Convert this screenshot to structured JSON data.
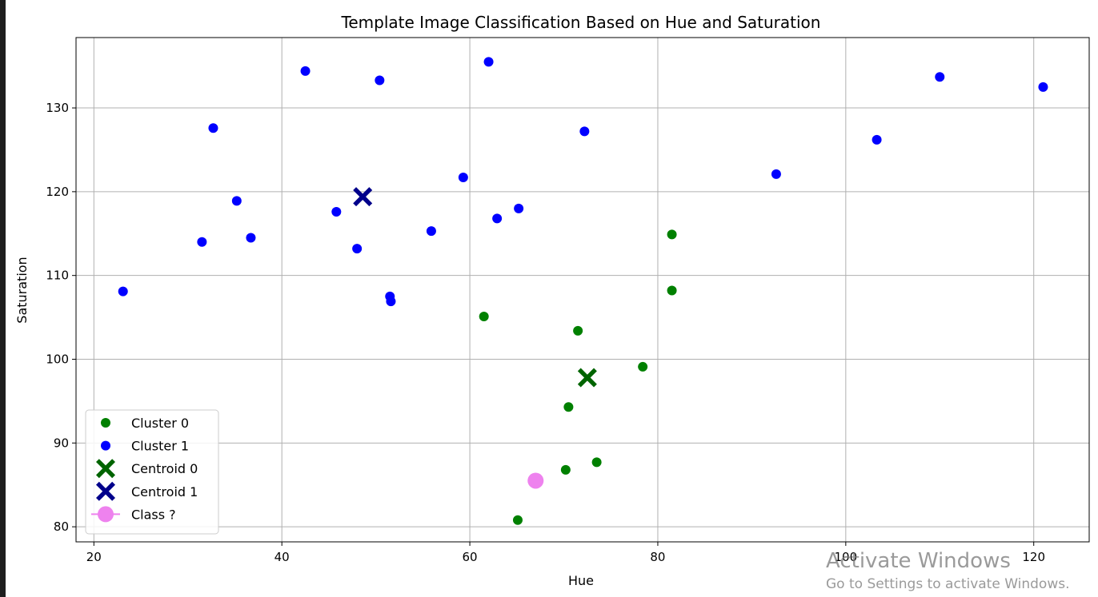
{
  "chart_data": {
    "type": "scatter",
    "title": "Template Image Classification Based on Hue and Saturation",
    "xlabel": "Hue",
    "ylabel": "Saturation",
    "xlim": [
      18.1,
      125.9
    ],
    "ylim": [
      78.2,
      138.4
    ],
    "xticks": [
      20,
      40,
      60,
      80,
      100,
      120
    ],
    "yticks": [
      80,
      90,
      100,
      110,
      120,
      130
    ],
    "grid": true,
    "legend_position": "lower-left",
    "series": [
      {
        "name": "Cluster 0",
        "color": "#008000",
        "marker": "circle",
        "x": [
          65.1,
          70.2,
          73.5,
          70.5,
          78.4,
          71.5,
          61.5,
          81.5,
          81.5
        ],
        "y": [
          80.8,
          86.8,
          87.7,
          94.3,
          99.1,
          103.4,
          105.1,
          108.2,
          114.9
        ]
      },
      {
        "name": "Cluster 1",
        "color": "#0000ff",
        "marker": "circle",
        "x": [
          23.1,
          31.5,
          36.7,
          35.2,
          32.7,
          42.5,
          45.8,
          48.0,
          50.4,
          51.5,
          51.6,
          55.9,
          59.3,
          62.0,
          62.9,
          65.2,
          72.2,
          92.6,
          103.3,
          110.0,
          121.0
        ],
        "y": [
          108.1,
          114.0,
          114.5,
          118.9,
          127.6,
          134.4,
          117.6,
          113.2,
          133.3,
          107.5,
          106.9,
          115.3,
          121.7,
          135.5,
          116.8,
          118.0,
          127.2,
          122.1,
          126.2,
          133.7,
          132.5
        ]
      },
      {
        "name": "Centroid 0",
        "color": "#006400",
        "marker": "x-filled",
        "x": [
          72.5
        ],
        "y": [
          97.8
        ]
      },
      {
        "name": "Centroid 1",
        "color": "#00008b",
        "marker": "x-filled",
        "x": [
          48.6
        ],
        "y": [
          119.4
        ]
      },
      {
        "name": "Class ?",
        "color": "#ee82ee",
        "marker": "circle-line",
        "x": [
          67.0
        ],
        "y": [
          85.5
        ]
      }
    ]
  },
  "watermark": {
    "title": "Activate Windows",
    "subtitle": "Go to Settings to activate Windows."
  }
}
